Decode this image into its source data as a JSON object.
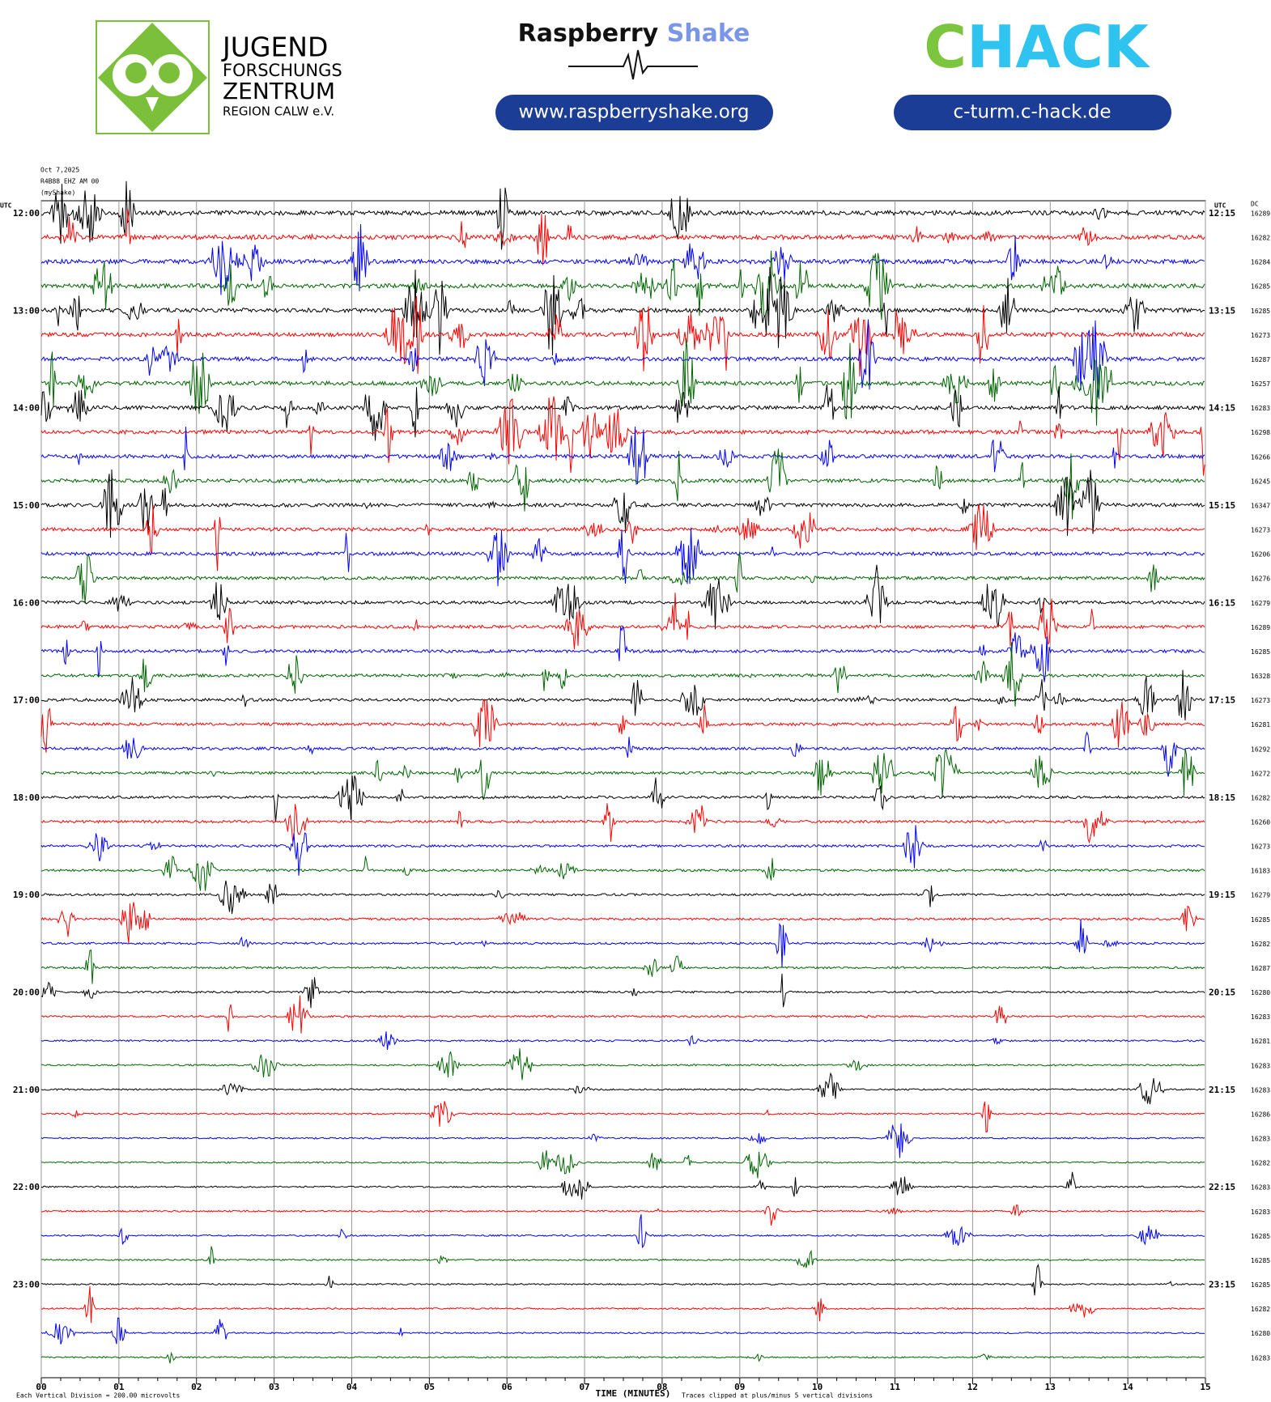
{
  "header": {
    "org_lines": [
      "JUGEND",
      "FORSCHUNGS",
      "ZENTRUM",
      "REGION CALW e.V."
    ],
    "brand_first": "Raspberry",
    "brand_second": "Shake",
    "brand_url": "www.raspberryshake.org",
    "hack_first": "C",
    "hack_rest": "HACK",
    "hack_url": "c-turm.c-hack.de"
  },
  "plot": {
    "date": "Oct 7,2025",
    "station": "R4B88 EHZ AM 00",
    "source": "(myShake)",
    "left_unit": "UTC",
    "right_unit": "UTC",
    "dc_header": "DC",
    "trace_colors": [
      "#000000",
      "#ff0000",
      "#0000ff",
      "#006600"
    ],
    "left_times": [
      "12:00",
      "13:00",
      "14:00",
      "15:00",
      "16:00",
      "17:00",
      "18:00",
      "19:00",
      "20:00",
      "21:00",
      "22:00",
      "23:00"
    ],
    "right_times": [
      "12:15",
      "13:15",
      "14:15",
      "15:15",
      "16:15",
      "17:15",
      "18:15",
      "19:15",
      "20:15",
      "21:15",
      "22:15",
      "23:15"
    ],
    "dc": [
      16289,
      16282,
      16284,
      16285,
      16285,
      16273,
      16287,
      16257,
      16283,
      16298,
      16266,
      16245,
      16347,
      16273,
      16206,
      16276,
      16279,
      16289,
      16285,
      16328,
      16273,
      16281,
      16292,
      16272,
      16282,
      16260,
      16273,
      16183,
      16279,
      16285,
      16282,
      16287,
      16280,
      16283,
      16281,
      16283,
      16283,
      16286,
      16283,
      16282,
      16283,
      16283,
      16285,
      16285,
      16285,
      16282,
      16280,
      16283
    ],
    "x_ticks": [
      "00",
      "01",
      "02",
      "03",
      "04",
      "05",
      "06",
      "07",
      "08",
      "09",
      "10",
      "11",
      "12",
      "13",
      "14",
      "15"
    ],
    "x_label": "TIME (MINUTES)",
    "scale_note": "Each Vertical Division =  200.00 microvolts",
    "clip_note": "Traces clipped at plus/minus 5 vertical divisions"
  }
}
